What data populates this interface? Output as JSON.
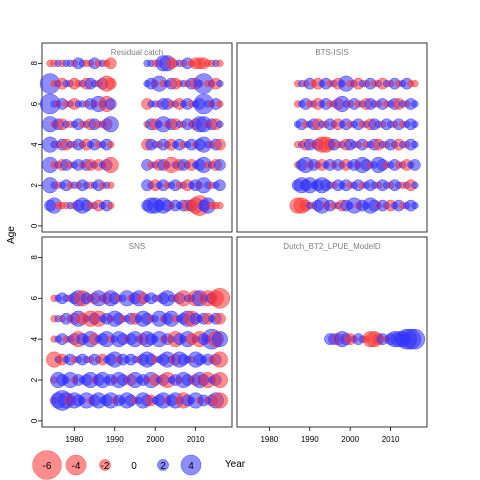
{
  "chart_data": {
    "type": "scatter",
    "xlabel": "Year",
    "ylabel": "Age",
    "x_ticks": [
      1980,
      1990,
      2000,
      2010
    ],
    "y_ticks": [
      0,
      2,
      4,
      6,
      8
    ],
    "xlim": [
      1972,
      2019
    ],
    "ylim": [
      -0.3,
      9.0
    ],
    "colors": {
      "negative": "#ff3030",
      "positive": "#3030ff",
      "frame": "#333333",
      "title": "#808080"
    },
    "legend": {
      "position": "bottom-left",
      "values": [
        -6,
        -4,
        -2,
        0,
        2,
        4
      ],
      "labels": [
        "-6",
        "-4",
        "-2",
        "0",
        "2",
        "4"
      ]
    },
    "panels": [
      {
        "title": "Residual catch",
        "rows": [
          {
            "age": 8,
            "years": [
              1974,
              2016
            ],
            "gaps": [
              [
                1990,
                1997
              ]
            ],
            "pattern": [
              -1,
              -1,
              1,
              -1,
              1,
              1,
              -1,
              2,
              1,
              -1,
              -1,
              2,
              -1,
              1,
              -1,
              -2,
              1,
              1,
              -1,
              -1,
              3,
              3,
              -2,
              -1,
              1,
              -1,
              2,
              -1,
              -2,
              -2,
              -2
            ]
          },
          {
            "age": 7,
            "years": [
              1974,
              2016
            ],
            "gaps": [
              [
                1990,
                1997
              ]
            ],
            "pattern": [
              4,
              -1,
              1,
              -2,
              1,
              1,
              -2,
              -1,
              1,
              -2,
              2,
              1,
              -1,
              2,
              -3,
              -2,
              1,
              2,
              -1,
              3,
              -1,
              1,
              2,
              -2,
              -1,
              1,
              -1,
              2,
              -2,
              1
            ]
          },
          {
            "age": 6,
            "years": [
              1974,
              2016
            ],
            "gaps": [
              [
                1990,
                1997
              ]
            ],
            "pattern": [
              4,
              1,
              -1,
              2,
              -1,
              1,
              -2,
              1,
              1,
              -1,
              2,
              -1,
              3,
              1,
              -3,
              2,
              -2,
              1,
              1,
              -1,
              2,
              2,
              -1,
              1,
              -2,
              1,
              2,
              -1,
              1,
              2
            ]
          },
          {
            "age": 5,
            "years": [
              1974,
              2016
            ],
            "gaps": [
              [
                1990,
                1997
              ]
            ],
            "pattern": [
              3,
              -1,
              2,
              -2,
              1,
              -1,
              1,
              2,
              -1,
              1,
              -2,
              2,
              -1,
              1,
              -2,
              3,
              -1,
              2,
              -2,
              1,
              3,
              -1,
              2,
              -2,
              1,
              -1,
              2,
              1,
              -2,
              3
            ]
          },
          {
            "age": 4,
            "years": [
              1974,
              2016
            ],
            "gaps": [
              [
                1990,
                1997
              ]
            ],
            "pattern": [
              3,
              1,
              -1,
              2,
              -2,
              1,
              -1,
              2,
              1,
              -2,
              1,
              2,
              -1,
              1,
              2,
              -1,
              -2,
              2,
              1,
              -1,
              2,
              1,
              -2,
              1,
              2,
              -1,
              1,
              2,
              -1,
              2
            ]
          },
          {
            "age": 3,
            "years": [
              1974,
              2016
            ],
            "gaps": [
              [
                1990,
                1997
              ]
            ],
            "pattern": [
              3,
              -1,
              1,
              -2,
              2,
              -1,
              1,
              2,
              -1,
              2,
              -2,
              1,
              -2,
              1,
              2,
              -3,
              2,
              -1,
              1,
              -2,
              2,
              1,
              -3,
              1,
              -2,
              2,
              1,
              -2,
              1,
              2
            ]
          },
          {
            "age": 2,
            "years": [
              1974,
              2016
            ],
            "gaps": [
              [
                1990,
                1997
              ]
            ],
            "pattern": [
              3,
              1,
              -1,
              1,
              2,
              -1,
              1,
              -1,
              2,
              1,
              -1,
              1,
              2,
              -1,
              1,
              -1,
              2,
              1,
              -2,
              1,
              2,
              -1,
              1,
              2,
              -1,
              1,
              -2,
              1,
              2,
              -1
            ]
          },
          {
            "age": 1,
            "years": [
              1974,
              2016
            ],
            "gaps": [
              [
                1990,
                1997
              ]
            ],
            "pattern": [
              2,
              3,
              -1,
              -1,
              -1,
              1,
              -1,
              2,
              3,
              2,
              -1,
              1,
              -2,
              1,
              2,
              -1,
              2,
              3,
              3,
              2,
              3,
              2,
              -1,
              2,
              1,
              2,
              -2,
              2,
              -3,
              -4
            ]
          }
        ]
      },
      {
        "title": "BTS-ISIS",
        "rows": [
          {
            "age": 7,
            "years": [
              1987,
              2016
            ],
            "gaps": [],
            "pattern": [
              -1,
              1,
              -1,
              2,
              -1,
              -2,
              1,
              2,
              -1,
              1,
              -2,
              1,
              3,
              -1,
              1,
              -2,
              1,
              -1,
              2,
              -1,
              1,
              -2,
              1,
              -1,
              2,
              -1,
              1,
              2,
              -1,
              -1
            ]
          },
          {
            "age": 6,
            "years": [
              1987,
              2016
            ],
            "gaps": [],
            "pattern": [
              -1,
              1,
              2,
              -1,
              1,
              -2,
              1,
              2,
              -1,
              1,
              -2,
              3,
              1,
              -1,
              2,
              -1,
              1,
              -2,
              2,
              1,
              -1,
              2,
              -1,
              1,
              2,
              -2,
              1,
              -1,
              2,
              1
            ]
          },
          {
            "age": 5,
            "years": [
              1987,
              2016
            ],
            "gaps": [],
            "pattern": [
              1,
              2,
              -1,
              1,
              2,
              -2,
              1,
              -1,
              2,
              1,
              -2,
              1,
              2,
              -1,
              1,
              2,
              -1,
              1,
              -2,
              2,
              1,
              -1,
              2,
              1,
              -1,
              2,
              -1,
              1,
              2,
              1
            ]
          },
          {
            "age": 4,
            "years": [
              1987,
              2016
            ],
            "gaps": [],
            "pattern": [
              -1,
              1,
              -2,
              2,
              -1,
              2,
              -3,
              -3,
              -2,
              2,
              -1,
              1,
              -2,
              2,
              1,
              -1,
              2,
              -1,
              1,
              2,
              -2,
              1,
              -1,
              2,
              1,
              -2,
              1,
              -1,
              2,
              1
            ]
          },
          {
            "age": 3,
            "years": [
              1987,
              2016
            ],
            "gaps": [],
            "pattern": [
              -1,
              2,
              3,
              -1,
              2,
              1,
              -2,
              1,
              2,
              -1,
              2,
              1,
              -2,
              1,
              2,
              -1,
              3,
              2,
              -1,
              1,
              3,
              2,
              -1,
              1,
              2,
              -1,
              1,
              -2,
              1,
              2
            ]
          },
          {
            "age": 2,
            "years": [
              1987,
              2016
            ],
            "gaps": [],
            "pattern": [
              2,
              3,
              2,
              3,
              1,
              2,
              3,
              2,
              1,
              -1,
              2,
              1,
              2,
              -1,
              1,
              2,
              -1,
              1,
              2,
              1,
              -1,
              2,
              1,
              -1,
              2,
              1,
              -1,
              1,
              -2,
              1
            ]
          },
          {
            "age": 1,
            "years": [
              1987,
              2016
            ],
            "gaps": [],
            "pattern": [
              -3,
              -3,
              -2,
              1,
              -1,
              2,
              3,
              -1,
              2,
              -1,
              1,
              -2,
              2,
              1,
              3,
              -1,
              2,
              1,
              3,
              2,
              -1,
              2,
              1,
              -2,
              1,
              2,
              -1,
              1,
              2,
              1
            ]
          }
        ]
      },
      {
        "title": "SNS",
        "rows": [
          {
            "age": 6,
            "years": [
              1975,
              2016
            ],
            "gaps": [],
            "pattern": [
              -1,
              1,
              2,
              1,
              -1,
              2,
              3,
              -3,
              2,
              1,
              -2,
              3,
              1,
              -2,
              3,
              2,
              -1,
              1,
              3,
              -1,
              2,
              3,
              -2,
              1,
              2,
              1,
              -1,
              2,
              3,
              1,
              -1,
              2,
              -3,
              1,
              1,
              -3,
              3,
              1,
              -3,
              2,
              -3,
              -4
            ]
          },
          {
            "age": 5,
            "years": [
              1975,
              2016
            ],
            "gaps": [],
            "pattern": [
              -1,
              1,
              -1,
              2,
              1,
              -2,
              3,
              -2,
              1,
              -3,
              2,
              -3,
              1,
              2,
              -1,
              3,
              2,
              -1,
              1,
              2,
              -2,
              1,
              3,
              2,
              -1,
              1,
              3,
              -1,
              2,
              3,
              -1,
              1,
              2,
              3,
              -3,
              2,
              1,
              2,
              -2,
              1,
              2,
              -2
            ]
          },
          {
            "age": 4,
            "years": [
              1975,
              2016
            ],
            "gaps": [],
            "pattern": [
              -1,
              1,
              2,
              -1,
              1,
              2,
              -3,
              2,
              1,
              3,
              -2,
              1,
              2,
              3,
              -1,
              1,
              3,
              2,
              -1,
              2,
              3,
              1,
              -2,
              3,
              2,
              1,
              3,
              -1,
              2,
              1,
              -3,
              2,
              1,
              3,
              -2,
              1,
              -3,
              2,
              1,
              4,
              -3,
              3
            ]
          },
          {
            "age": 3,
            "years": [
              1975,
              2016
            ],
            "gaps": [],
            "pattern": [
              -3,
              1,
              -2,
              1,
              2,
              -1,
              1,
              2,
              1,
              -1,
              2,
              1,
              -2,
              1,
              2,
              3,
              -1,
              2,
              1,
              2,
              1,
              -1,
              2,
              3,
              2,
              -1,
              1,
              2,
              3,
              1,
              -2,
              3,
              2,
              1,
              -1,
              3,
              2,
              1,
              2,
              -1,
              2,
              -3
            ]
          },
          {
            "age": 2,
            "years": [
              1975,
              2016
            ],
            "gaps": [],
            "pattern": [
              -1,
              3,
              2,
              1,
              3,
              -1,
              2,
              1,
              2,
              3,
              -1,
              2,
              3,
              1,
              2,
              -1,
              3,
              2,
              1,
              -2,
              3,
              1,
              2,
              -1,
              3,
              -2,
              1,
              2,
              -3,
              1,
              2,
              -1,
              3,
              2,
              1,
              -2,
              3,
              2,
              -3,
              1,
              2,
              -3
            ]
          },
          {
            "age": 1,
            "years": [
              1975,
              2016
            ],
            "gaps": [],
            "pattern": [
              -1,
              3,
              4,
              3,
              -2,
              3,
              2,
              1,
              3,
              -1,
              2,
              3,
              1,
              2,
              3,
              -1,
              2,
              1,
              3,
              2,
              -1,
              1,
              3,
              2,
              -2,
              1,
              2,
              3,
              -1,
              2,
              3,
              1,
              -3,
              2,
              1,
              3,
              -1,
              2,
              1,
              -2,
              3,
              -3
            ]
          }
        ]
      },
      {
        "title": "Dutch_BT2_LPUE_ModelD",
        "rows": [
          {
            "age": 4,
            "years": [
              1995,
              2016
            ],
            "gaps": [],
            "pattern": [
              2,
              2,
              -2,
              3,
              2,
              -2,
              -1,
              2,
              1,
              -1,
              -3,
              -3,
              -2,
              2,
              -1,
              2,
              3,
              3,
              3,
              4,
              4,
              4
            ]
          }
        ]
      }
    ]
  }
}
